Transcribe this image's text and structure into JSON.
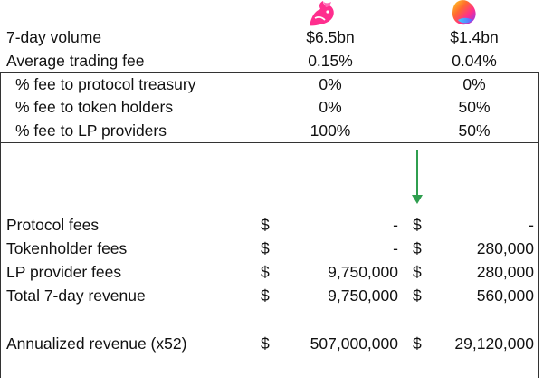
{
  "header": {
    "col1_logo": "uniswap-unicorn-icon",
    "col2_logo": "pancakeswap-bunny-icon"
  },
  "summary": {
    "rows": [
      {
        "label": "7-day volume",
        "col1": "$6.5bn",
        "col2": "$1.4bn"
      },
      {
        "label": "Average trading fee",
        "col1": "0.15%",
        "col2": "0.04%"
      }
    ]
  },
  "fee_split": {
    "rows": [
      {
        "label": "% fee to protocol treasury",
        "col1": "0%",
        "col2": "0%"
      },
      {
        "label": "% fee to token holders",
        "col1": "0%",
        "col2": "50%"
      },
      {
        "label": "% fee to LP providers",
        "col1": "100%",
        "col2": "50%"
      }
    ]
  },
  "revenue": {
    "currency": "$",
    "rows": [
      {
        "label": "Protocol fees",
        "col1": "-",
        "col2": "-"
      },
      {
        "label": "Tokenholder fees",
        "col1": "-",
        "col2": "280,000"
      },
      {
        "label": "LP provider fees",
        "col1": "9,750,000",
        "col2": "280,000"
      },
      {
        "label": "Total 7-day revenue",
        "col1": "9,750,000",
        "col2": "560,000"
      }
    ],
    "annualized": {
      "label": "Annualized revenue (x52)",
      "col1": "507,000,000",
      "col2": "29,120,000"
    }
  },
  "colors": {
    "arrow": "#2f9e4f",
    "border": "#333333"
  }
}
